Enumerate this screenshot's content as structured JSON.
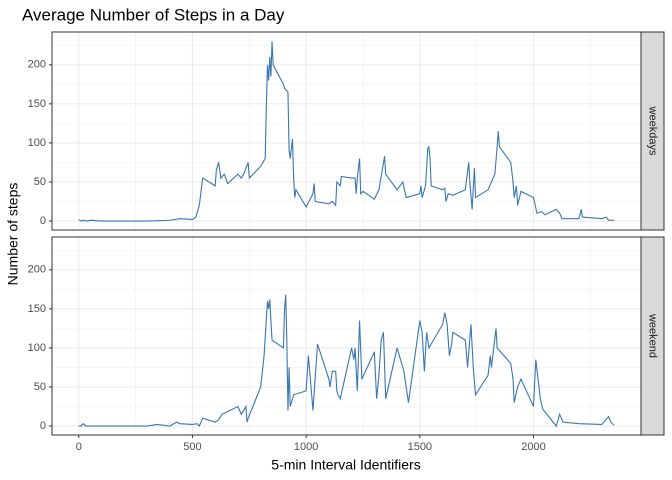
{
  "chart_data": {
    "type": "line",
    "title": "Average Number of Steps in a Day",
    "x_label": "5-min Interval Identifiers",
    "y_label": "Number of steps",
    "xlim": [
      -117.75,
      2472.75
    ],
    "ylim": [
      -11.5,
      242
    ],
    "xticks": [
      0,
      500,
      1000,
      1500,
      2000
    ],
    "yticks": [
      0,
      50,
      100,
      150,
      200
    ],
    "grid": true,
    "series": [
      {
        "name": "weekdays",
        "color": "#3a76af",
        "x": [
          0,
          10,
          20,
          35,
          55,
          100,
          200,
          300,
          400,
          445,
          500,
          515,
          530,
          545,
          600,
          605,
          615,
          625,
          640,
          655,
          700,
          715,
          725,
          745,
          750,
          800,
          820,
          825,
          830,
          835,
          840,
          845,
          850,
          855,
          900,
          905,
          920,
          925,
          930,
          940,
          945,
          950,
          955,
          1000,
          1030,
          1035,
          1040,
          1100,
          1115,
          1130,
          1135,
          1150,
          1155,
          1200,
          1215,
          1220,
          1225,
          1235,
          1240,
          1250,
          1300,
          1320,
          1345,
          1350,
          1400,
          1425,
          1440,
          1500,
          1505,
          1510,
          1525,
          1535,
          1540,
          1545,
          1550,
          1600,
          1610,
          1615,
          1625,
          1645,
          1700,
          1715,
          1720,
          1730,
          1740,
          1745,
          1800,
          1815,
          1830,
          1840,
          1845,
          1850,
          1900,
          1910,
          1915,
          1925,
          1930,
          1945,
          2000,
          2015,
          2035,
          2050,
          2100,
          2115,
          2125,
          2200,
          2210,
          2215,
          2300,
          2320,
          2330,
          2355
        ],
        "values": [
          2,
          0,
          1,
          0,
          1,
          0,
          0,
          0,
          1,
          3,
          2,
          5,
          20,
          55,
          45,
          65,
          75,
          55,
          60,
          48,
          60,
          55,
          60,
          75,
          55,
          70,
          80,
          150,
          200,
          180,
          210,
          185,
          230,
          200,
          175,
          170,
          165,
          90,
          80,
          105,
          55,
          30,
          40,
          18,
          35,
          48,
          25,
          22,
          25,
          20,
          50,
          45,
          57,
          55,
          55,
          35,
          55,
          80,
          35,
          38,
          28,
          40,
          83,
          60,
          40,
          50,
          30,
          35,
          45,
          30,
          45,
          93,
          95,
          80,
          45,
          40,
          42,
          25,
          35,
          33,
          40,
          75,
          50,
          15,
          68,
          30,
          40,
          50,
          60,
          95,
          115,
          95,
          75,
          50,
          30,
          45,
          20,
          38,
          30,
          10,
          12,
          8,
          15,
          10,
          3,
          3,
          15,
          5,
          3,
          5,
          1,
          1
        ]
      },
      {
        "name": "weekend",
        "color": "#3a76af",
        "x": [
          0,
          10,
          20,
          30,
          100,
          200,
          300,
          345,
          400,
          430,
          445,
          500,
          520,
          530,
          545,
          600,
          615,
          630,
          700,
          715,
          730,
          735,
          740,
          745,
          800,
          815,
          830,
          835,
          840,
          845,
          850,
          900,
          905,
          910,
          915,
          920,
          925,
          930,
          945,
          1000,
          1010,
          1020,
          1030,
          1050,
          1100,
          1105,
          1115,
          1130,
          1135,
          1140,
          1150,
          1200,
          1210,
          1215,
          1225,
          1235,
          1245,
          1300,
          1310,
          1320,
          1330,
          1340,
          1350,
          1400,
          1420,
          1430,
          1450,
          1500,
          1510,
          1520,
          1530,
          1540,
          1600,
          1610,
          1620,
          1630,
          1640,
          1645,
          1700,
          1710,
          1725,
          1735,
          1745,
          1800,
          1810,
          1815,
          1835,
          1840,
          1900,
          1910,
          1915,
          1930,
          1945,
          2000,
          2010,
          2020,
          2030,
          2040,
          2045,
          2100,
          2115,
          2130,
          2200,
          2300,
          2330,
          2340,
          2355
        ],
        "values": [
          0,
          0,
          3,
          0,
          0,
          0,
          0,
          2,
          0,
          5,
          3,
          2,
          3,
          0,
          10,
          5,
          8,
          15,
          25,
          15,
          22,
          25,
          5,
          10,
          50,
          90,
          160,
          150,
          162,
          135,
          110,
          100,
          150,
          168,
          110,
          20,
          75,
          25,
          40,
          45,
          90,
          55,
          20,
          105,
          60,
          50,
          70,
          70,
          45,
          40,
          35,
          100,
          85,
          100,
          45,
          135,
          60,
          95,
          35,
          65,
          110,
          120,
          35,
          100,
          80,
          70,
          30,
          135,
          120,
          70,
          120,
          100,
          130,
          145,
          130,
          90,
          105,
          120,
          110,
          75,
          130,
          75,
          40,
          65,
          90,
          75,
          125,
          100,
          80,
          60,
          30,
          50,
          60,
          25,
          85,
          60,
          35,
          22,
          20,
          0,
          15,
          5,
          3,
          2,
          12,
          5,
          1
        ]
      }
    ]
  }
}
